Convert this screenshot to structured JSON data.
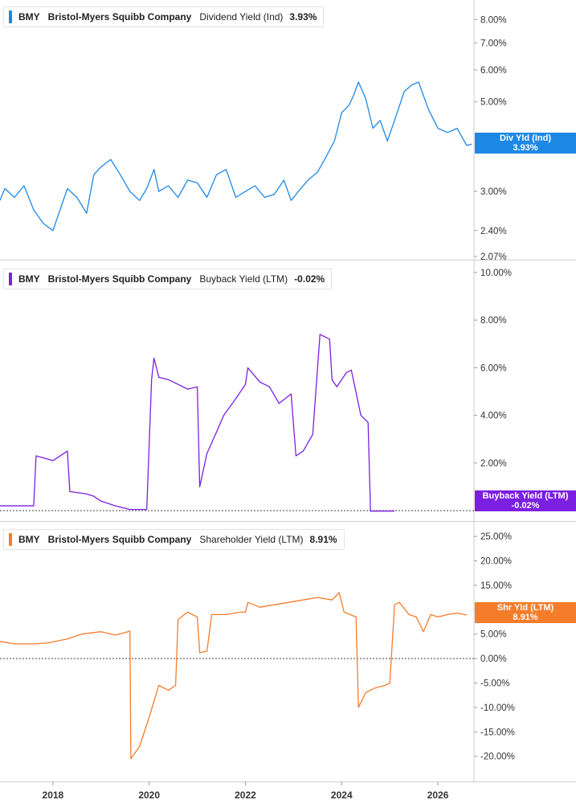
{
  "chart_data": [
    {
      "type": "line",
      "ticker": "BMY",
      "company": "Bristol-Myers Squibb Company",
      "metric": "Dividend Yield (Ind)",
      "current_value": "3.93%",
      "badge_label": "Div Yld (Ind)",
      "badge_value": "3.93%",
      "color": "#1e88e5",
      "y_scale": "log",
      "y_ticks": [
        "8.00%",
        "7.00%",
        "6.00%",
        "5.00%",
        "3.00%",
        "2.40%",
        "2.07%"
      ],
      "y_tick_values": [
        8.0,
        7.0,
        6.0,
        5.0,
        3.0,
        2.4,
        2.07
      ],
      "ylim": [
        2.07,
        8.7
      ],
      "x": [
        2016.9,
        2017.0,
        2017.2,
        2017.4,
        2017.6,
        2017.8,
        2018.0,
        2018.1,
        2018.3,
        2018.5,
        2018.7,
        2018.85,
        2019.0,
        2019.2,
        2019.4,
        2019.6,
        2019.8,
        2019.95,
        2020.1,
        2020.2,
        2020.4,
        2020.6,
        2020.8,
        2021.0,
        2021.2,
        2021.4,
        2021.6,
        2021.8,
        2022.0,
        2022.2,
        2022.4,
        2022.6,
        2022.8,
        2022.95,
        2023.1,
        2023.3,
        2023.5,
        2023.7,
        2023.85,
        2024.0,
        2024.15,
        2024.25,
        2024.35,
        2024.5,
        2024.65,
        2024.8,
        2024.95,
        2025.1,
        2025.3,
        2025.45,
        2025.6,
        2025.8,
        2026.0,
        2026.2,
        2026.4,
        2026.6,
        2026.7
      ],
      "values": [
        2.85,
        3.05,
        2.9,
        3.1,
        2.7,
        2.5,
        2.4,
        2.6,
        3.05,
        2.9,
        2.65,
        3.3,
        3.45,
        3.6,
        3.3,
        3.0,
        2.85,
        3.05,
        3.4,
        3.0,
        3.1,
        2.9,
        3.2,
        3.15,
        2.9,
        3.3,
        3.4,
        2.9,
        3.0,
        3.1,
        2.9,
        2.95,
        3.2,
        2.85,
        3.0,
        3.2,
        3.35,
        3.7,
        4.0,
        4.7,
        4.9,
        5.2,
        5.6,
        5.1,
        4.3,
        4.5,
        4.0,
        4.5,
        5.3,
        5.5,
        5.6,
        4.8,
        4.3,
        4.2,
        4.3,
        3.9,
        3.93
      ]
    },
    {
      "type": "line",
      "ticker": "BMY",
      "company": "Bristol-Myers Squibb Company",
      "metric": "Buyback Yield (LTM)",
      "current_value": "-0.02%",
      "badge_label": "Buyback Yield (LTM)",
      "badge_value": "-0.02%",
      "color": "#7b1fe0",
      "y_ticks": [
        "10.00%",
        "8.00%",
        "6.00%",
        "4.00%",
        "2.00%"
      ],
      "y_tick_values": [
        10,
        8,
        6,
        4,
        2
      ],
      "ylim": [
        -0.3,
        10.3
      ],
      "baseline": 0,
      "x": [
        2016.9,
        2017.3,
        2017.6,
        2017.65,
        2018.0,
        2018.3,
        2018.35,
        2018.7,
        2018.85,
        2019.0,
        2019.3,
        2019.6,
        2019.95,
        2020.05,
        2020.1,
        2020.2,
        2020.4,
        2020.6,
        2020.8,
        2021.0,
        2021.05,
        2021.2,
        2021.4,
        2021.55,
        2021.8,
        2022.0,
        2022.05,
        2022.3,
        2022.5,
        2022.7,
        2022.95,
        2023.05,
        2023.2,
        2023.4,
        2023.55,
        2023.75,
        2023.8,
        2023.9,
        2024.1,
        2024.2,
        2024.4,
        2024.55,
        2024.6,
        2024.8,
        2024.85,
        2025.1
      ],
      "values": [
        0.2,
        0.2,
        0.2,
        2.3,
        2.1,
        2.5,
        0.8,
        0.7,
        0.6,
        0.4,
        0.2,
        0.05,
        0.05,
        5.5,
        6.4,
        5.6,
        5.5,
        5.3,
        5.1,
        5.2,
        1.0,
        2.4,
        3.3,
        4.0,
        4.7,
        5.3,
        6.0,
        5.4,
        5.2,
        4.5,
        4.9,
        2.3,
        2.5,
        3.2,
        7.4,
        7.2,
        5.5,
        5.2,
        5.8,
        5.9,
        4.0,
        3.7,
        -0.02,
        -0.02,
        -0.02,
        -0.02
      ]
    },
    {
      "type": "line",
      "ticker": "BMY",
      "company": "Bristol-Myers Squibb Company",
      "metric": "Shareholder Yield (LTM)",
      "current_value": "8.91%",
      "badge_label": "Shr Yld (LTM)",
      "badge_value": "8.91%",
      "color": "#f57c2b",
      "y_ticks": [
        "25.00%",
        "20.00%",
        "15.00%",
        "10.00%",
        "5.00%",
        "0.00%",
        "-5.00%",
        "-10.00%",
        "-15.00%",
        "-20.00%"
      ],
      "y_tick_values": [
        25,
        20,
        15,
        10,
        5,
        0,
        -5,
        -10,
        -15,
        -20
      ],
      "ylim": [
        -24.5,
        27
      ],
      "baseline": 0,
      "x": [
        2016.9,
        2017.2,
        2017.6,
        2017.9,
        2018.3,
        2018.6,
        2019.0,
        2019.3,
        2019.6,
        2019.62,
        2019.8,
        2020.0,
        2020.2,
        2020.4,
        2020.55,
        2020.6,
        2020.8,
        2021.0,
        2021.05,
        2021.2,
        2021.3,
        2021.6,
        2021.9,
        2022.0,
        2022.05,
        2022.3,
        2022.6,
        2022.9,
        2023.2,
        2023.5,
        2023.8,
        2023.95,
        2024.05,
        2024.3,
        2024.35,
        2024.5,
        2024.7,
        2024.9,
        2025.0,
        2025.1,
        2025.2,
        2025.4,
        2025.55,
        2025.7,
        2025.85,
        2026.0,
        2026.2,
        2026.4,
        2026.6
      ],
      "values": [
        3.5,
        3.0,
        3.0,
        3.2,
        4.0,
        5.0,
        5.5,
        4.8,
        5.6,
        -20.5,
        -18.0,
        -12.0,
        -5.5,
        -6.5,
        -5.5,
        8.0,
        9.5,
        8.5,
        1.2,
        1.5,
        9.0,
        9.0,
        9.5,
        9.5,
        11.5,
        10.5,
        11.0,
        11.5,
        12.0,
        12.5,
        12.0,
        13.5,
        9.5,
        8.5,
        -10.0,
        -7.0,
        -6.0,
        -5.5,
        -5.0,
        11.0,
        11.5,
        9.0,
        8.5,
        5.5,
        9.0,
        8.5,
        9.0,
        9.3,
        8.91
      ]
    }
  ],
  "x_axis": {
    "ticks": [
      "2018",
      "2020",
      "2022",
      "2024",
      "2026"
    ],
    "tick_values": [
      2018,
      2020,
      2022,
      2024,
      2026
    ],
    "xlim": [
      2016.9,
      2026.75
    ]
  }
}
